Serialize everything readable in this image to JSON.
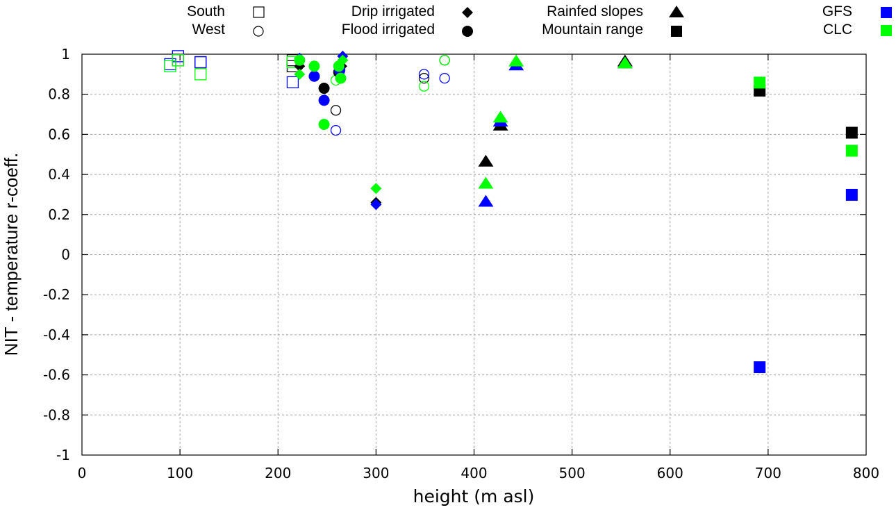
{
  "chart_data": {
    "type": "scatter",
    "title": "",
    "xlabel": "height (m asl)",
    "ylabel": "NIT - temperature r-coeff.",
    "xlim": [
      0,
      800
    ],
    "ylim": [
      -1,
      1
    ],
    "xticks": [
      "0",
      "100",
      "200",
      "300",
      "400",
      "500",
      "600",
      "700",
      "800"
    ],
    "xtick_values": [
      0,
      100,
      200,
      300,
      400,
      500,
      600,
      700,
      800
    ],
    "yticks": [
      "1",
      "0.8",
      "0.6",
      "0.4",
      "0.2",
      "0",
      "-0.2",
      "-0.4",
      "-0.6",
      "-0.8",
      "-1"
    ],
    "ytick_values": [
      1,
      0.8,
      0.6,
      0.4,
      0.2,
      0,
      -0.2,
      -0.4,
      -0.6,
      -0.8,
      -1
    ],
    "grid": true,
    "legend_placement": "top (outside, above plot)",
    "legend": {
      "regions": [
        {
          "label": "South",
          "marker": "open-square"
        },
        {
          "label": "West",
          "marker": "open-circle"
        },
        {
          "label": "Drip irrigated",
          "marker": "diamond"
        },
        {
          "label": "Flood irrigated",
          "marker": "filled-circle"
        },
        {
          "label": "Rainfed slopes",
          "marker": "triangle"
        },
        {
          "label": "Mountain range",
          "marker": "filled-square"
        }
      ],
      "sources": [
        {
          "label": "GFS",
          "color": "#0000ff"
        },
        {
          "label": "CLC",
          "color": "#00ff00"
        }
      ]
    },
    "colors": {
      "black": "#000000",
      "GFS": "#0000ff",
      "CLC": "#00ff00",
      "grid": "#a0a0a0"
    },
    "series": [
      {
        "name": "South (black)",
        "marker": "open-square",
        "color": "#000000",
        "points": [
          [
            98,
            0.97
          ],
          [
            121,
            0.96
          ],
          [
            215,
            0.94
          ],
          [
            215,
            0.97
          ]
        ]
      },
      {
        "name": "South GFS",
        "marker": "open-square",
        "color": "#0000ff",
        "points": [
          [
            90,
            0.95
          ],
          [
            98,
            0.99
          ],
          [
            121,
            0.96
          ],
          [
            215,
            0.86
          ]
        ]
      },
      {
        "name": "South CLC",
        "marker": "open-square",
        "color": "#00ff00",
        "points": [
          [
            90,
            0.94
          ],
          [
            98,
            0.97
          ],
          [
            121,
            0.9
          ],
          [
            215,
            0.96
          ]
        ]
      },
      {
        "name": "West (black)",
        "marker": "open-circle",
        "color": "#000000",
        "points": [
          [
            349,
            0.88
          ],
          [
            259,
            0.72
          ],
          [
            370,
            0.97
          ]
        ]
      },
      {
        "name": "West GFS",
        "marker": "open-circle",
        "color": "#0000ff",
        "points": [
          [
            349,
            0.9
          ],
          [
            370,
            0.88
          ],
          [
            259,
            0.62
          ]
        ]
      },
      {
        "name": "West CLC",
        "marker": "open-circle",
        "color": "#00ff00",
        "points": [
          [
            349,
            0.84
          ],
          [
            259,
            0.87
          ],
          [
            370,
            0.97
          ]
        ]
      },
      {
        "name": "Drip irrigated (black)",
        "marker": "diamond",
        "color": "#000000",
        "points": [
          [
            222,
            0.94
          ],
          [
            265,
            0.94
          ],
          [
            300,
            0.26
          ]
        ]
      },
      {
        "name": "Drip irrigated GFS",
        "marker": "diamond",
        "color": "#0000ff",
        "points": [
          [
            222,
            0.98
          ],
          [
            266,
            0.99
          ],
          [
            300,
            0.25
          ]
        ]
      },
      {
        "name": "Drip irrigated CLC",
        "marker": "diamond",
        "color": "#00ff00",
        "points": [
          [
            222,
            0.9
          ],
          [
            266,
            0.97
          ],
          [
            300,
            0.33
          ]
        ]
      },
      {
        "name": "Flood irrigated (black)",
        "marker": "filled-circle",
        "color": "#000000",
        "points": [
          [
            247,
            0.83
          ],
          [
            262,
            0.91
          ]
        ]
      },
      {
        "name": "Flood irrigated GFS",
        "marker": "filled-circle",
        "color": "#0000ff",
        "points": [
          [
            237,
            0.89
          ],
          [
            247,
            0.77
          ],
          [
            263,
            0.92
          ]
        ]
      },
      {
        "name": "Flood irrigated CLC",
        "marker": "filled-circle",
        "color": "#00ff00",
        "points": [
          [
            222,
            0.97
          ],
          [
            237,
            0.94
          ],
          [
            247,
            0.65
          ],
          [
            262,
            0.94
          ],
          [
            264,
            0.88
          ]
        ]
      },
      {
        "name": "Rainfed slopes (black)",
        "marker": "triangle",
        "color": "#000000",
        "points": [
          [
            412,
            0.46
          ],
          [
            427,
            0.64
          ],
          [
            554,
            0.96
          ]
        ]
      },
      {
        "name": "Rainfed slopes GFS",
        "marker": "triangle",
        "color": "#0000ff",
        "points": [
          [
            412,
            0.26
          ],
          [
            427,
            0.66
          ],
          [
            443,
            0.94
          ],
          [
            554,
            0.95
          ]
        ]
      },
      {
        "name": "Rainfed slopes CLC",
        "marker": "triangle",
        "color": "#00ff00",
        "points": [
          [
            412,
            0.35
          ],
          [
            427,
            0.68
          ],
          [
            443,
            0.96
          ],
          [
            554,
            0.95
          ]
        ]
      },
      {
        "name": "Mountain range (black)",
        "marker": "filled-square",
        "color": "#000000",
        "points": [
          [
            691,
            0.82
          ],
          [
            785,
            0.61
          ]
        ]
      },
      {
        "name": "Mountain range GFS",
        "marker": "filled-square",
        "color": "#0000ff",
        "points": [
          [
            691,
            -0.56
          ],
          [
            785,
            0.3
          ]
        ]
      },
      {
        "name": "Mountain range CLC",
        "marker": "filled-square",
        "color": "#00ff00",
        "points": [
          [
            691,
            0.86
          ],
          [
            785,
            0.52
          ]
        ]
      }
    ]
  }
}
